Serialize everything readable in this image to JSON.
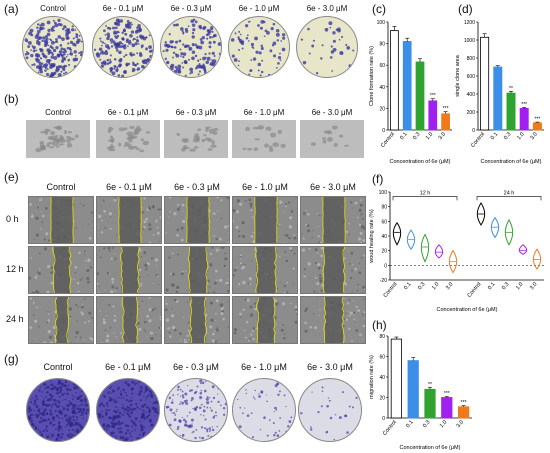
{
  "panel_labels": {
    "a": "(a)",
    "b": "(b)",
    "c": "(c)",
    "d": "(d)",
    "e": "(e)",
    "f": "(f)",
    "g": "(g)",
    "h": "(h)"
  },
  "conditions": [
    "Control",
    "6e - 0.1 μM",
    "6e - 0.3 μM",
    "6e - 1.0 μM",
    "6e - 3.0 μM"
  ],
  "times": [
    "0 h",
    "12 h",
    "24 h"
  ],
  "colors": {
    "control": "#ffffff",
    "c01": "#3b8fe8",
    "c03": "#2fa32f",
    "c10": "#a020f0",
    "c30": "#f07a1a",
    "clone_dish": "#3a3aa0",
    "crystal_violet": "#4a3aa8"
  },
  "chart_data": [
    {
      "id": "c",
      "type": "bar",
      "categories": [
        "Control",
        "0.1",
        "0.3",
        "1.0",
        "3.0"
      ],
      "values": [
        92,
        82,
        63,
        27,
        15
      ],
      "errors": [
        4,
        3,
        3,
        2,
        2
      ],
      "significance": [
        "",
        "",
        "",
        "***",
        "***"
      ],
      "ylabel": "Clone formation rate (%)",
      "xlabel": "Concentration of 6e (μM)",
      "ylim": [
        0,
        100
      ],
      "yticks": [
        "0",
        "20",
        "40",
        "60",
        "80",
        "100"
      ]
    },
    {
      "id": "d",
      "type": "bar",
      "categories": [
        "Control",
        "0.1",
        "0.3",
        "1.0",
        "3.0"
      ],
      "values": [
        1030,
        700,
        410,
        240,
        80
      ],
      "errors": [
        40,
        15,
        20,
        12,
        8
      ],
      "significance": [
        "",
        "",
        "**",
        "***",
        "***"
      ],
      "ylabel": "single clone area",
      "xlabel": "Concentration of 6e (μM)",
      "ylim": [
        0,
        1200
      ],
      "yticks": [
        "0",
        "200",
        "400",
        "600",
        "800",
        "1000",
        "1200"
      ]
    },
    {
      "id": "f",
      "type": "violin",
      "categories": [
        "Control",
        "0.1",
        "0.3",
        "1.0",
        "3.0",
        "Control",
        "0.1",
        "0.3",
        "1.0",
        "3.0"
      ],
      "medians": [
        45,
        35,
        25,
        18,
        5,
        70,
        52,
        45,
        20,
        8
      ],
      "mins": [
        28,
        22,
        5,
        10,
        -10,
        55,
        38,
        28,
        15,
        -5
      ],
      "maxs": [
        58,
        48,
        42,
        28,
        20,
        85,
        65,
        62,
        28,
        22
      ],
      "groups": [
        "12 h",
        "24 h"
      ],
      "ylabel": "woud healing rate (%)",
      "xlabel": "Concentration of 6e (μM)",
      "ylim": [
        -20,
        100
      ],
      "yticks": [
        "-20",
        "0",
        "20",
        "40",
        "60",
        "80",
        "100"
      ]
    },
    {
      "id": "h",
      "type": "bar",
      "categories": [
        "Control",
        "0.1",
        "0.3",
        "1.0",
        "3.0"
      ],
      "values": [
        77,
        56,
        28,
        20,
        11
      ],
      "errors": [
        2,
        3,
        2,
        1,
        1
      ],
      "significance": [
        "",
        "",
        "**",
        "***",
        "***"
      ],
      "ylabel": "migration rate (%)",
      "xlabel": "Concentration of 6e (μM)",
      "ylim": [
        0,
        80
      ],
      "yticks": [
        "0",
        "20",
        "40",
        "60",
        "80"
      ]
    }
  ]
}
